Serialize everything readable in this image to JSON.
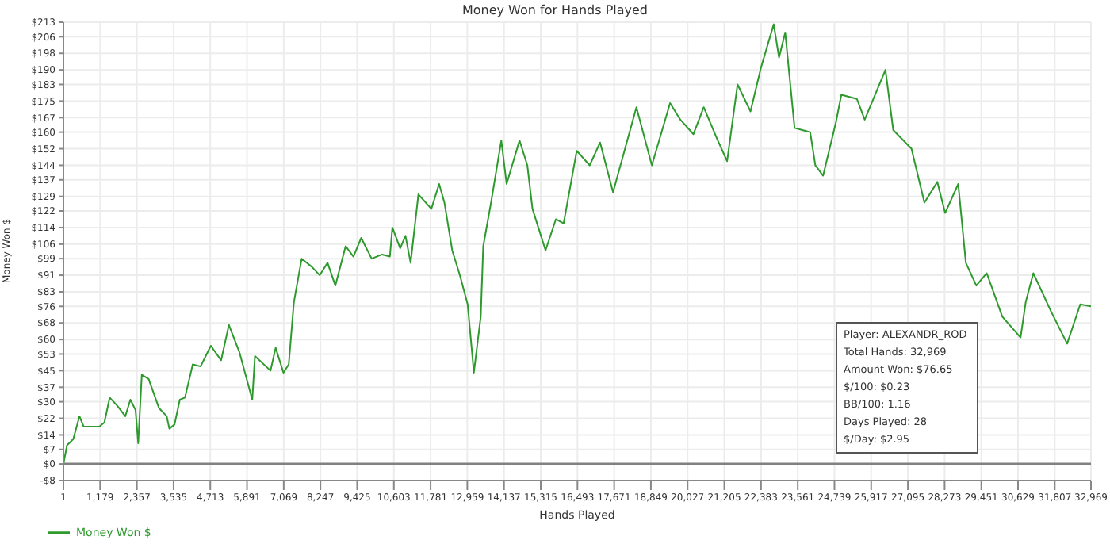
{
  "chart_data": {
    "type": "line",
    "title": "Money Won for Hands Played",
    "xlabel": "Hands Played",
    "ylabel": "Money Won $",
    "annotations": [
      "Player: ALEXANDR_ROD",
      "Total Hands: 32,969",
      "Amount Won: $76.65",
      "$/100: $0.23",
      "BB/100: 1.16",
      "Days Played: 28",
      "$/Day: $2.95"
    ],
    "series": [
      {
        "name": "Money Won $",
        "color": "#2e9a2e",
        "x": [
          1,
          116,
          316,
          515,
          650,
          1150,
          1315,
          1485,
          1735,
          1985,
          2150,
          2315,
          2400,
          2515,
          2735,
          3065,
          3315,
          3400,
          3565,
          3735,
          3900,
          4150,
          4400,
          4730,
          5060,
          5310,
          5645,
          6060,
          6145,
          6645,
          6810,
          7060,
          7230,
          7395,
          7645,
          7975,
          8225,
          8475,
          8725,
          9055,
          9305,
          9555,
          9890,
          10225,
          10475,
          10555,
          10805,
          10975,
          11140,
          11390,
          11805,
          12055,
          12225,
          12475,
          12720,
          12970,
          13170,
          13390,
          13470,
          13720,
          14050,
          14220,
          14635,
          14885,
          15050,
          15470,
          15800,
          16050,
          16470,
          16885,
          17220,
          17635,
          18385,
          18880,
          19465,
          19795,
          20215,
          20545,
          20965,
          21295,
          21630,
          22045,
          22380,
          22790,
          22960,
          23160,
          23460,
          23960,
          24125,
          24375,
          24790,
          24960,
          25460,
          25710,
          26375,
          26625,
          27210,
          27625,
          28040,
          28290,
          28710,
          28955,
          29290,
          29625,
          30125,
          30710,
          30875,
          31120,
          31705,
          32205,
          32625,
          32969
        ],
        "values": [
          0,
          9,
          12,
          23,
          18,
          18,
          20,
          32,
          28,
          23,
          31,
          26,
          10,
          43,
          41,
          27,
          23,
          17,
          19,
          31,
          32,
          48,
          47,
          57,
          50,
          67,
          54,
          31,
          52,
          45,
          56,
          44,
          48,
          78,
          99,
          95,
          91,
          97,
          86,
          105,
          100,
          109,
          99,
          101,
          100,
          114,
          104,
          110,
          97,
          130,
          123,
          135,
          126,
          103,
          91,
          77,
          44,
          71,
          105,
          126,
          156,
          135,
          156,
          144,
          123,
          103,
          118,
          116,
          151,
          144,
          155,
          131,
          172,
          144,
          174,
          166,
          159,
          172,
          157,
          146,
          183,
          170,
          191,
          212,
          196,
          208,
          162,
          160,
          144,
          139,
          165,
          178,
          176,
          166,
          190,
          161,
          152,
          126,
          136,
          121,
          135,
          97,
          86,
          92,
          71,
          61,
          78,
          92,
          73,
          58,
          77,
          76
        ]
      }
    ],
    "xlim": [
      1,
      32969
    ],
    "xticks": [
      1,
      {
        "value": 1179,
        "label": "1,179"
      },
      {
        "value": 2357,
        "label": "2,357"
      },
      {
        "value": 3535,
        "label": "3,535"
      },
      {
        "value": 4713,
        "label": "4,713"
      },
      {
        "value": 5891,
        "label": "5,891"
      },
      {
        "value": 7069,
        "label": "7,069"
      },
      {
        "value": 8247,
        "label": "8,247"
      },
      {
        "value": 9425,
        "label": "9,425"
      },
      {
        "value": 10603,
        "label": "10,603"
      },
      {
        "value": 11781,
        "label": "11,781"
      },
      {
        "value": 12959,
        "label": "12,959"
      },
      {
        "value": 14137,
        "label": "14,137"
      },
      {
        "value": 15315,
        "label": "15,315"
      },
      {
        "value": 16493,
        "label": "16,493"
      },
      {
        "value": 17671,
        "label": "17,671"
      },
      {
        "value": 18849,
        "label": "18,849"
      },
      {
        "value": 20027,
        "label": "20,027"
      },
      {
        "value": 21205,
        "label": "21,205"
      },
      {
        "value": 22383,
        "label": "22,383"
      },
      {
        "value": 23561,
        "label": "23,561"
      },
      {
        "value": 24739,
        "label": "24,739"
      },
      {
        "value": 25917,
        "label": "25,917"
      },
      {
        "value": 27095,
        "label": "27,095"
      },
      {
        "value": 28273,
        "label": "28,273"
      },
      {
        "value": 29451,
        "label": "29,451"
      },
      {
        "value": 30629,
        "label": "30,629"
      },
      {
        "value": 31807,
        "label": "31,807"
      },
      {
        "value": 32969,
        "label": "32,969"
      }
    ],
    "ylim": [
      -8,
      213
    ],
    "yticks": [
      {
        "value": -8,
        "label": "-$8"
      },
      {
        "value": 0,
        "label": "$0"
      },
      {
        "value": 7,
        "label": "$7"
      },
      {
        "value": 14,
        "label": "$14"
      },
      {
        "value": 22,
        "label": "$22"
      },
      {
        "value": 30,
        "label": "$30"
      },
      {
        "value": 37,
        "label": "$37"
      },
      {
        "value": 45,
        "label": "$45"
      },
      {
        "value": 53,
        "label": "$53"
      },
      {
        "value": 60,
        "label": "$60"
      },
      {
        "value": 68,
        "label": "$68"
      },
      {
        "value": 76,
        "label": "$76"
      },
      {
        "value": 83,
        "label": "$83"
      },
      {
        "value": 91,
        "label": "$91"
      },
      {
        "value": 99,
        "label": "$99"
      },
      {
        "value": 106,
        "label": "$106"
      },
      {
        "value": 114,
        "label": "$114"
      },
      {
        "value": 122,
        "label": "$122"
      },
      {
        "value": 129,
        "label": "$129"
      },
      {
        "value": 137,
        "label": "$137"
      },
      {
        "value": 144,
        "label": "$144"
      },
      {
        "value": 152,
        "label": "$152"
      },
      {
        "value": 160,
        "label": "$160"
      },
      {
        "value": 167,
        "label": "$167"
      },
      {
        "value": 175,
        "label": "$175"
      },
      {
        "value": 183,
        "label": "$183"
      },
      {
        "value": 190,
        "label": "$190"
      },
      {
        "value": 198,
        "label": "$198"
      },
      {
        "value": 206,
        "label": "$206"
      },
      {
        "value": 213,
        "label": "$213"
      }
    ],
    "ref_lines": [
      {
        "axis": "y",
        "value": 0,
        "color": "#808080"
      }
    ],
    "grid": true,
    "legend": "bottom left",
    "marker": "none",
    "line_style": "solid"
  }
}
